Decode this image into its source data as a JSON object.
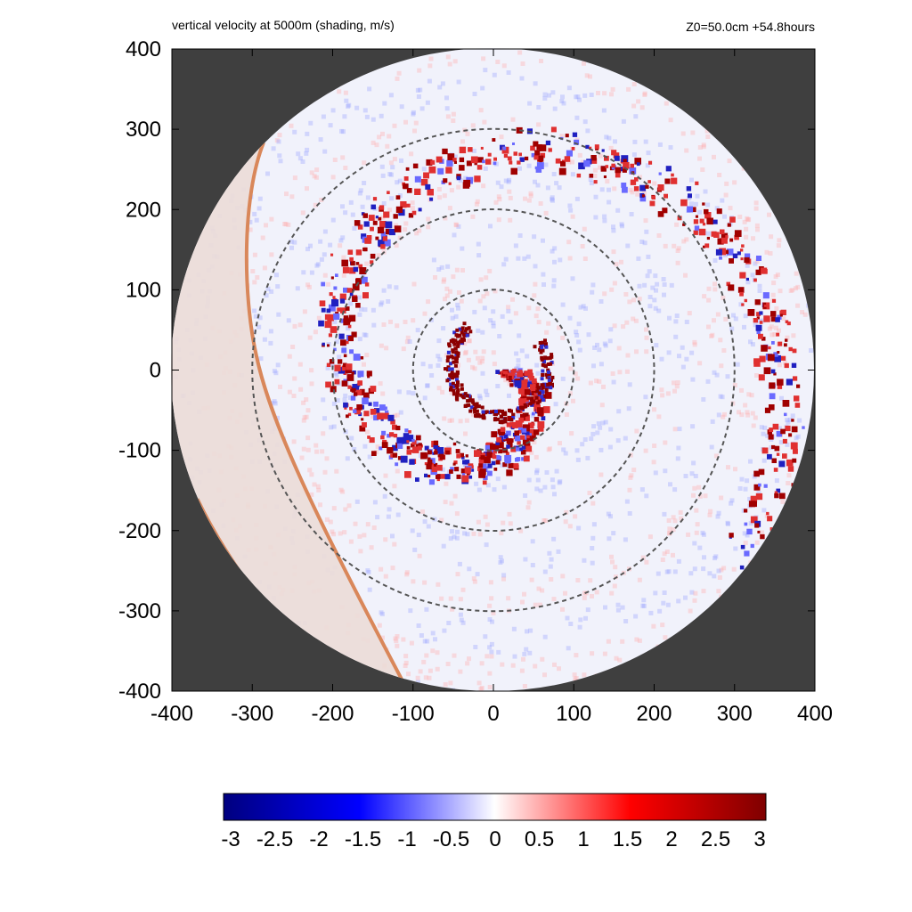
{
  "header": {
    "title": "vertical velocity at 5000m (shading, m/s)",
    "info": "Z0=50.0cm  +54.8hours"
  },
  "colors": {
    "outside_domain": "#3f3f3f",
    "land_shading": "#ecdcd8",
    "coastline": "#d9875a",
    "ring": "#555555"
  },
  "chart_data": {
    "type": "heatmap",
    "title": "vertical velocity at 5000m (shading, m/s)",
    "annotation": "Z0=50.0cm  +54.8hours",
    "xlabel": "",
    "ylabel": "",
    "xlim": [
      -400,
      400
    ],
    "ylim": [
      -400,
      400
    ],
    "xticks": [
      -400,
      -300,
      -200,
      -100,
      0,
      100,
      200,
      300,
      400
    ],
    "yticks": [
      -400,
      -300,
      -200,
      -100,
      0,
      100,
      200,
      300,
      400
    ],
    "domain_radius": 400,
    "range_rings": [
      100,
      200,
      300
    ],
    "colorbar": {
      "min": -3,
      "max": 3,
      "ticks": [
        "-3",
        "-2.5",
        "-2",
        "-1.5",
        "-1",
        "-0.5",
        "0",
        "0.5",
        "1",
        "1.5",
        "2",
        "2.5",
        "3"
      ],
      "colors": [
        "#00007f",
        "#0000ff",
        "#ffffff",
        "#ff0000",
        "#7f0000"
      ]
    },
    "grid": false,
    "legend": "bottom"
  }
}
